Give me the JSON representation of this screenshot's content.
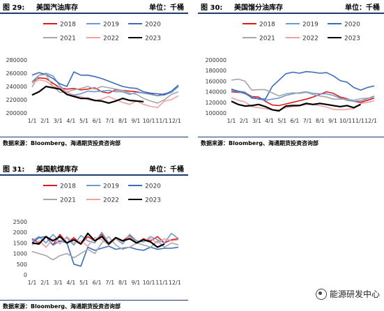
{
  "colors": {
    "header_line": "#1f3a6e",
    "2018": "#e0191a",
    "2019": "#6a9bd3",
    "2020": "#3a6bbf",
    "2021": "#a6a6a6",
    "2022": "#f2a0a0",
    "2023": "#000000"
  },
  "watermark": "能源研发中心",
  "chart_data": [
    {
      "fig": "图 29:",
      "title": "美国汽油库存",
      "unit": "单位：千桶",
      "source": "数据来源：Bloomberg、海通期货投资咨询部",
      "type": "line",
      "ylim": [
        200000,
        280000
      ],
      "yticks": [
        "280000",
        "260000",
        "240000",
        "220000",
        "200000"
      ],
      "xticks": [
        "1/1",
        "2/1",
        "3/1",
        "4/1",
        "5/1",
        "6/1",
        "7/1",
        "8/1",
        "9/1",
        "10/1",
        "11/1",
        "12/1"
      ],
      "legend_row1": [
        "2018",
        "2019",
        "2020"
      ],
      "legend_row2": [
        "2021",
        "2022",
        "2023"
      ],
      "series": [
        {
          "name": "2018",
          "values": [
            247000,
            253000,
            252000,
            245000,
            238000,
            236000,
            237000,
            235000,
            236000,
            238000,
            232000,
            230000,
            235000,
            234000,
            233000,
            232000,
            230000,
            229000,
            226000,
            229000,
            231000,
            240000
          ]
        },
        {
          "name": "2019",
          "values": [
            247000,
            257000,
            260000,
            256000,
            241000,
            231000,
            227000,
            229000,
            233000,
            232000,
            233000,
            234000,
            232000,
            232000,
            228000,
            231000,
            230000,
            228000,
            226000,
            227000,
            231000,
            240000
          ]
        },
        {
          "name": "2020",
          "values": [
            257000,
            261000,
            258000,
            252000,
            244000,
            240000,
            262000,
            257000,
            257000,
            255000,
            252000,
            248000,
            244000,
            240000,
            238000,
            237000,
            232000,
            230000,
            229000,
            228000,
            233000,
            242000
          ]
        },
        {
          "name": "2021",
          "values": [
            239000,
            257000,
            258000,
            240000,
            231000,
            232000,
            235000,
            237000,
            240000,
            236000,
            240000,
            238000,
            236000,
            234000,
            230000,
            228000,
            222000,
            218000,
            215000,
            220000,
            228000,
            232000
          ]
        },
        {
          "name": "2022",
          "values": [
            245000,
            250000,
            248000,
            240000,
            238000,
            232000,
            226000,
            225000,
            220000,
            218000,
            221000,
            225000,
            220000,
            216000,
            213000,
            218000,
            213000,
            210000,
            208000,
            218000,
            220000,
            226000
          ]
        },
        {
          "name": "2023",
          "values": [
            227000,
            232000,
            240000,
            238000,
            236000,
            228000,
            225000,
            222000,
            222000,
            219000,
            218000,
            215000,
            218000,
            222000,
            219000,
            218000,
            217000,
            null,
            null,
            null,
            null,
            null
          ]
        }
      ]
    },
    {
      "fig": "图 30:",
      "title": "美国馏分油库存",
      "unit": "单位：千桶",
      "source": "数据来源：Bloomberg、海通期货投资咨询部",
      "type": "line",
      "ylim": [
        100000,
        200000
      ],
      "yticks": [
        "200000",
        "180000",
        "160000",
        "140000",
        "120000",
        "100000"
      ],
      "xticks": [
        "1/1",
        "2/1",
        "3/1",
        "4/1",
        "5/1",
        "6/1",
        "7/1",
        "8/1",
        "9/1",
        "10/1",
        "11/1",
        "12/1"
      ],
      "legend_row1": [
        "2018",
        "2019",
        "2020"
      ],
      "legend_row2": [
        "2021",
        "2022",
        "2023"
      ],
      "series": [
        {
          "name": "2018",
          "values": [
            140000,
            139000,
            138000,
            131000,
            130000,
            122000,
            115000,
            114000,
            117000,
            120000,
            123000,
            126000,
            130000,
            135000,
            140000,
            137000,
            130000,
            127000,
            122000,
            120000,
            124000,
            128000
          ]
        },
        {
          "name": "2019",
          "values": [
            143000,
            140000,
            136000,
            130000,
            126000,
            124000,
            126000,
            128000,
            133000,
            136000,
            138000,
            140000,
            137000,
            136000,
            136000,
            133000,
            128000,
            124000,
            122000,
            123000,
            127000,
            132000
          ]
        },
        {
          "name": "2020",
          "values": [
            145000,
            141000,
            139000,
            128000,
            127000,
            126000,
            150000,
            162000,
            174000,
            177000,
            175000,
            178000,
            177000,
            175000,
            176000,
            170000,
            161000,
            158000,
            148000,
            143000,
            148000,
            151000
          ]
        },
        {
          "name": "2021",
          "values": [
            162000,
            164000,
            160000,
            143000,
            144000,
            144000,
            138000,
            132000,
            136000,
            138000,
            137000,
            139000,
            135000,
            132000,
            130000,
            126000,
            126000,
            126000,
            124000,
            127000,
            128000,
            129000
          ]
        },
        {
          "name": "2022",
          "values": [
            129000,
            124000,
            121000,
            112000,
            110000,
            108000,
            106000,
            105000,
            110000,
            112000,
            114000,
            116000,
            116000,
            114000,
            111000,
            107000,
            106000,
            107000,
            108000,
            118000,
            120000,
            123000
          ]
        },
        {
          "name": "2023",
          "values": [
            122000,
            116000,
            113000,
            114000,
            116000,
            112000,
            106000,
            104000,
            113000,
            114000,
            114000,
            118000,
            116000,
            118000,
            116000,
            114000,
            112000,
            114000,
            110000,
            116000,
            null,
            null
          ]
        }
      ]
    },
    {
      "fig": "图 31:",
      "title": "美国航煤库存",
      "unit": "单位：千桶",
      "source": "数据来源：Bloomberg、海通期货投资咨询部",
      "type": "line",
      "ylim": [
        0,
        2500
      ],
      "yticks": [
        "2500",
        "2000",
        "1500",
        "1000",
        "500",
        "0"
      ],
      "xticks": [
        "1/1",
        "2/1",
        "3/1",
        "4/1",
        "5/1",
        "6/1",
        "7/1",
        "8/1",
        "9/1",
        "10/1",
        "11/1",
        "12/1"
      ],
      "legend_row1": [
        "2018",
        "2019",
        "2020"
      ],
      "legend_row2": [
        "2021",
        "2022",
        "2023"
      ],
      "series": [
        {
          "name": "2018",
          "values": [
            1700,
            1500,
            1800,
            1400,
            1900,
            1500,
            1750,
            1450,
            1800,
            1600,
            1900,
            1500,
            1750,
            1600,
            1850,
            1500,
            1700,
            1600,
            1800,
            1500,
            1650,
            1700
          ]
        },
        {
          "name": "2019",
          "values": [
            1600,
            1800,
            1500,
            1900,
            1550,
            1750,
            1400,
            1850,
            1600,
            1500,
            2000,
            1500,
            1700,
            1450,
            1900,
            1600,
            1550,
            1800,
            1650,
            1500,
            1950,
            1700
          ]
        },
        {
          "name": "2020",
          "values": [
            1500,
            1750,
            1800,
            1400,
            1600,
            1500,
            500,
            400,
            1300,
            1150,
            1250,
            1350,
            1200,
            1250,
            1300,
            1200,
            1150,
            1300,
            1200,
            1250,
            1250,
            1300
          ]
        },
        {
          "name": "2021",
          "values": [
            1100,
            1000,
            900,
            700,
            900,
            1000,
            800,
            1000,
            1200,
            1000,
            1500,
            1800,
            1400,
            1200,
            1300,
            1500,
            1400,
            1300,
            1600,
            1300,
            1500,
            1400
          ]
        },
        {
          "name": "2022",
          "values": [
            1400,
            1600,
            1300,
            1700,
            1450,
            1800,
            1500,
            1600,
            1350,
            1750,
            1650,
            1400,
            1700,
            1550,
            1800,
            1500,
            1650,
            1700,
            1500,
            1700,
            1600,
            1650
          ]
        },
        {
          "name": "2023",
          "values": [
            1500,
            1450,
            1800,
            1600,
            1800,
            1500,
            1650,
            1450,
            1950,
            1600,
            1800,
            1450,
            1750,
            1600,
            1700,
            1500,
            1650,
            1550,
            1300,
            1450,
            null,
            null
          ]
        }
      ]
    }
  ]
}
